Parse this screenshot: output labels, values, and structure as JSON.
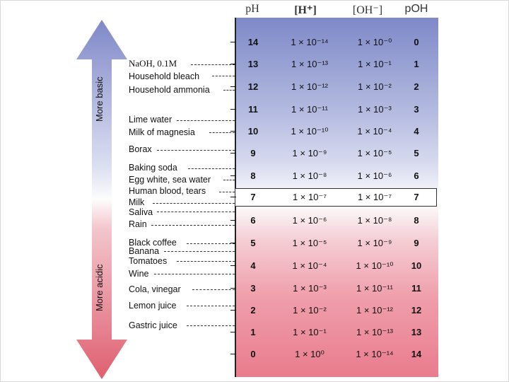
{
  "headers": {
    "ph": "pH",
    "h": "[H⁺]",
    "oh": "[OH⁻]",
    "poh": "pOH"
  },
  "arrow": {
    "basic_label": "More basic",
    "acidic_label": "More acidic"
  },
  "rows": [
    {
      "ph": "14",
      "h": "1 × 10⁻¹⁴",
      "oh": "1 × 10⁻⁰",
      "poh": "0"
    },
    {
      "ph": "13",
      "h": "1 × 10⁻¹³",
      "oh": "1 × 10⁻¹",
      "poh": "1"
    },
    {
      "ph": "12",
      "h": "1 × 10⁻¹²",
      "oh": "1 × 10⁻²",
      "poh": "2"
    },
    {
      "ph": "11",
      "h": "1 × 10⁻¹¹",
      "oh": "1 × 10⁻³",
      "poh": "3"
    },
    {
      "ph": "10",
      "h": "1 × 10⁻¹⁰",
      "oh": "1 × 10⁻⁴",
      "poh": "4"
    },
    {
      "ph": "9",
      "h": "1 × 10⁻⁹",
      "oh": "1 × 10⁻⁵",
      "poh": "5"
    },
    {
      "ph": "8",
      "h": "1 × 10⁻⁸",
      "oh": "1 × 10⁻⁶",
      "poh": "6"
    },
    {
      "ph": "7",
      "h": "1 × 10⁻⁷",
      "oh": "1 × 10⁻⁷",
      "poh": "7"
    },
    {
      "ph": "6",
      "h": "1 × 10⁻⁶",
      "oh": "1 × 10⁻⁸",
      "poh": "8"
    },
    {
      "ph": "5",
      "h": "1 × 10⁻⁵",
      "oh": "1 × 10⁻⁹",
      "poh": "9"
    },
    {
      "ph": "4",
      "h": "1 × 10⁻⁴",
      "oh": "1 × 10⁻¹⁰",
      "poh": "10"
    },
    {
      "ph": "3",
      "h": "1 × 10⁻³",
      "oh": "1 × 10⁻¹¹",
      "poh": "11"
    },
    {
      "ph": "2",
      "h": "1 × 10⁻²",
      "oh": "1 × 10⁻¹²",
      "poh": "12"
    },
    {
      "ph": "1",
      "h": "1 × 10⁻¹",
      "oh": "1 × 10⁻¹³",
      "poh": "13"
    },
    {
      "ph": "0",
      "h": "1 × 10⁰",
      "oh": "1 × 10⁻¹⁴",
      "poh": "14"
    }
  ],
  "substances": [
    "NaOH, 0.1M",
    "Household bleach",
    "Household ammonia",
    "Lime water",
    "Milk of magnesia",
    "Borax",
    "Baking soda",
    "Egg white, sea water",
    "Human blood, tears",
    "Milk",
    "Saliva",
    "Rain",
    "Black coffee",
    "Banana",
    "Tomatoes",
    "Wine",
    "Cola, vinegar",
    "Lemon juice",
    "Gastric juice"
  ],
  "colors": {
    "basic": "#8e98d0",
    "acidic": "#df5f70",
    "border": "#222222"
  }
}
